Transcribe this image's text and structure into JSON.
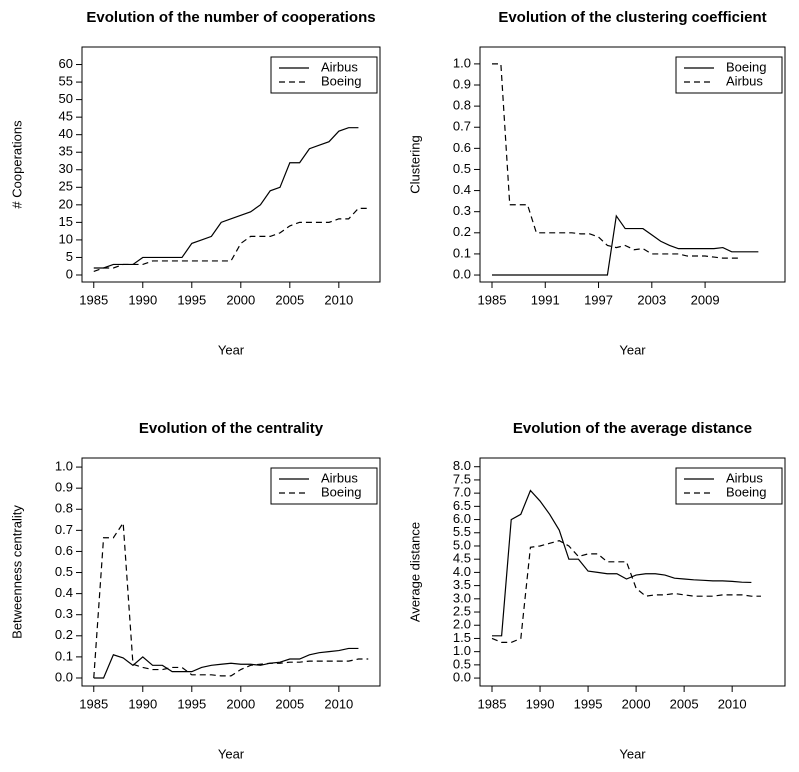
{
  "chart_data": [
    {
      "type": "line",
      "title": "Evolution of the number of cooperations",
      "xlabel": "Year",
      "ylabel": "# Cooperations",
      "x": [
        1985,
        1986,
        1987,
        1988,
        1989,
        1990,
        1991,
        1992,
        1993,
        1994,
        1995,
        1996,
        1997,
        1998,
        1999,
        2000,
        2001,
        2002,
        2003,
        2004,
        2005,
        2006,
        2007,
        2008,
        2009,
        2010,
        2011,
        2012,
        2013
      ],
      "series": [
        {
          "name": "Airbus",
          "color": "#000000",
          "linestyle": "solid",
          "values": [
            2,
            2,
            3,
            3,
            3,
            5,
            5,
            5,
            5,
            5,
            9,
            10,
            11,
            15,
            16,
            17,
            18,
            20,
            24,
            25,
            32,
            32,
            36,
            37,
            38,
            41,
            42,
            42,
            null
          ]
        },
        {
          "name": "Boeing",
          "color": "#000000",
          "linestyle": "dashed",
          "values": [
            1,
            2,
            2,
            3,
            3,
            3,
            4,
            4,
            4,
            4,
            4,
            4,
            4,
            4,
            4,
            9,
            11,
            11,
            11,
            12,
            14,
            15,
            15,
            15,
            15,
            16,
            16,
            19,
            19
          ]
        }
      ],
      "xlim": [
        1983.8,
        2014.2
      ],
      "ylim": [
        -2,
        65
      ],
      "xticks": [
        1985,
        1990,
        1995,
        2000,
        2005,
        2010
      ],
      "yticks": [
        0,
        5,
        10,
        15,
        20,
        25,
        30,
        35,
        40,
        45,
        50,
        55,
        60
      ],
      "legend": "top-right"
    },
    {
      "type": "line",
      "title": "Evolution of the clustering coefficient",
      "xlabel": "Year",
      "ylabel": "Clustering",
      "x": [
        1985,
        1986,
        1987,
        1988,
        1989,
        1990,
        1991,
        1992,
        1993,
        1994,
        1995,
        1996,
        1997,
        1998,
        1999,
        2000,
        2001,
        2002,
        2003,
        2004,
        2005,
        2006,
        2007,
        2008,
        2009,
        2010,
        2011,
        2012,
        2013,
        2014,
        2015
      ],
      "series": [
        {
          "name": "Boeing",
          "color": "#000000",
          "linestyle": "solid",
          "values": [
            0,
            0,
            0,
            0,
            0,
            0,
            0,
            0,
            0,
            0,
            0,
            0,
            0,
            0,
            0.28,
            0.22,
            0.22,
            0.22,
            0.19,
            0.16,
            0.14,
            0.125,
            0.125,
            0.125,
            0.125,
            0.125,
            0.13,
            0.11,
            0.11,
            0.11,
            0.11
          ]
        },
        {
          "name": "Airbus",
          "color": "#000000",
          "linestyle": "dashed",
          "values": [
            1,
            1,
            0.333,
            0.333,
            0.333,
            0.2,
            0.2,
            0.2,
            0.2,
            0.2,
            0.195,
            0.195,
            0.18,
            0.14,
            0.13,
            0.14,
            0.12,
            0.125,
            0.1,
            0.1,
            0.1,
            0.1,
            0.09,
            0.09,
            0.09,
            0.085,
            0.08,
            0.08,
            0.08,
            null,
            null
          ]
        }
      ],
      "xlim": [
        1983.65,
        2018
      ],
      "ylim": [
        -0.033,
        1.08
      ],
      "xticks": [
        1985,
        1991,
        1997,
        2003,
        2009
      ],
      "yticks": [
        {
          "value": 0,
          "label": "0.0"
        },
        {
          "value": 0.1,
          "label": "0.1"
        },
        {
          "value": 0.2,
          "label": "0.2"
        },
        {
          "value": 0.3,
          "label": "0.3"
        },
        {
          "value": 0.4,
          "label": "0.4"
        },
        {
          "value": 0.5,
          "label": "0.5"
        },
        {
          "value": 0.6,
          "label": "0.6"
        },
        {
          "value": 0.7,
          "label": "0.7"
        },
        {
          "value": 0.8,
          "label": "0.8"
        },
        {
          "value": 0.9,
          "label": "0.9"
        },
        {
          "value": 1,
          "label": "1.0"
        }
      ],
      "legend": "top-right"
    },
    {
      "type": "line",
      "title": "Evolution of the centrality",
      "xlabel": "Year",
      "ylabel": "Betweenness centrality",
      "x": [
        1985,
        1986,
        1987,
        1988,
        1989,
        1990,
        1991,
        1992,
        1993,
        1994,
        1995,
        1996,
        1997,
        1998,
        1999,
        2000,
        2001,
        2002,
        2003,
        2004,
        2005,
        2006,
        2007,
        2008,
        2009,
        2010,
        2011,
        2012,
        2013
      ],
      "series": [
        {
          "name": "Airbus",
          "color": "#000000",
          "linestyle": "solid",
          "values": [
            0,
            0,
            0.11,
            0.095,
            0.06,
            0.1,
            0.06,
            0.06,
            0.03,
            0.03,
            0.03,
            0.05,
            0.06,
            0.065,
            0.07,
            0.065,
            0.065,
            0.06,
            0.07,
            0.075,
            0.09,
            0.09,
            0.11,
            0.12,
            0.125,
            0.13,
            0.14,
            0.14,
            null
          ]
        },
        {
          "name": "Boeing",
          "color": "#000000",
          "linestyle": "dashed",
          "values": [
            0,
            0.665,
            0.665,
            0.735,
            0.065,
            0.05,
            0.04,
            0.04,
            0.05,
            0.05,
            0.015,
            0.015,
            0.015,
            0.01,
            0.01,
            0.04,
            0.06,
            0.065,
            0.07,
            0.07,
            0.075,
            0.075,
            0.08,
            0.08,
            0.08,
            0.08,
            0.08,
            0.09,
            0.09
          ]
        }
      ],
      "xlim": [
        1983.8,
        2014.2
      ],
      "ylim": [
        -0.038,
        1.043
      ],
      "xticks": [
        1985,
        1990,
        1995,
        2000,
        2005,
        2010
      ],
      "yticks": [
        {
          "value": 0,
          "label": "0.0"
        },
        {
          "value": 0.1,
          "label": "0.1"
        },
        {
          "value": 0.2,
          "label": "0.2"
        },
        {
          "value": 0.3,
          "label": "0.3"
        },
        {
          "value": 0.4,
          "label": "0.4"
        },
        {
          "value": 0.5,
          "label": "0.5"
        },
        {
          "value": 0.6,
          "label": "0.6"
        },
        {
          "value": 0.7,
          "label": "0.7"
        },
        {
          "value": 0.8,
          "label": "0.8"
        },
        {
          "value": 0.9,
          "label": "0.9"
        },
        {
          "value": 1,
          "label": "1.0"
        }
      ],
      "legend": "top-right"
    },
    {
      "type": "line",
      "title": "Evolution of the average distance",
      "xlabel": "Year",
      "ylabel": "Average distance",
      "x": [
        1985,
        1986,
        1987,
        1988,
        1989,
        1990,
        1991,
        1992,
        1993,
        1994,
        1995,
        1996,
        1997,
        1998,
        1999,
        2000,
        2001,
        2002,
        2003,
        2004,
        2005,
        2006,
        2007,
        2008,
        2009,
        2010,
        2011,
        2012,
        2013
      ],
      "series": [
        {
          "name": "Airbus",
          "color": "#000000",
          "linestyle": "solid",
          "values": [
            1.6,
            1.6,
            6.0,
            6.2,
            7.1,
            6.7,
            6.2,
            5.6,
            4.5,
            4.5,
            4.05,
            4.0,
            3.95,
            3.95,
            3.75,
            3.9,
            3.95,
            3.95,
            3.9,
            3.78,
            3.75,
            3.72,
            3.7,
            3.68,
            3.68,
            3.66,
            3.63,
            3.62,
            null
          ]
        },
        {
          "name": "Boeing",
          "color": "#000000",
          "linestyle": "dashed",
          "values": [
            1.5,
            1.35,
            1.35,
            1.5,
            4.95,
            5.0,
            5.1,
            5.2,
            5.0,
            4.6,
            4.7,
            4.7,
            4.4,
            4.4,
            4.4,
            3.4,
            3.1,
            3.15,
            3.15,
            3.2,
            3.15,
            3.1,
            3.1,
            3.1,
            3.15,
            3.15,
            3.15,
            3.1,
            3.1
          ]
        }
      ],
      "xlim": [
        1983.75,
        2015.5
      ],
      "ylim": [
        -0.3,
        8.33
      ],
      "xticks": [
        1985,
        1990,
        1995,
        2000,
        2005,
        2010
      ],
      "yticks": [
        {
          "value": 0,
          "label": "0.0"
        },
        {
          "value": 0.5,
          "label": "0.5"
        },
        {
          "value": 1,
          "label": "1.0"
        },
        {
          "value": 1.5,
          "label": "1.5"
        },
        {
          "value": 2,
          "label": "2.0"
        },
        {
          "value": 2.5,
          "label": "2.5"
        },
        {
          "value": 3,
          "label": "3.0"
        },
        {
          "value": 3.5,
          "label": "3.5"
        },
        {
          "value": 4,
          "label": "4.0"
        },
        {
          "value": 4.5,
          "label": "4.5"
        },
        {
          "value": 5,
          "label": "5.0"
        },
        {
          "value": 5.5,
          "label": "5.5"
        },
        {
          "value": 6,
          "label": "6.0"
        },
        {
          "value": 6.5,
          "label": "6.5"
        },
        {
          "value": 7,
          "label": "7.0"
        },
        {
          "value": 7.5,
          "label": "7.5"
        },
        {
          "value": 8,
          "label": "8.0"
        }
      ],
      "legend": "top-right"
    }
  ]
}
